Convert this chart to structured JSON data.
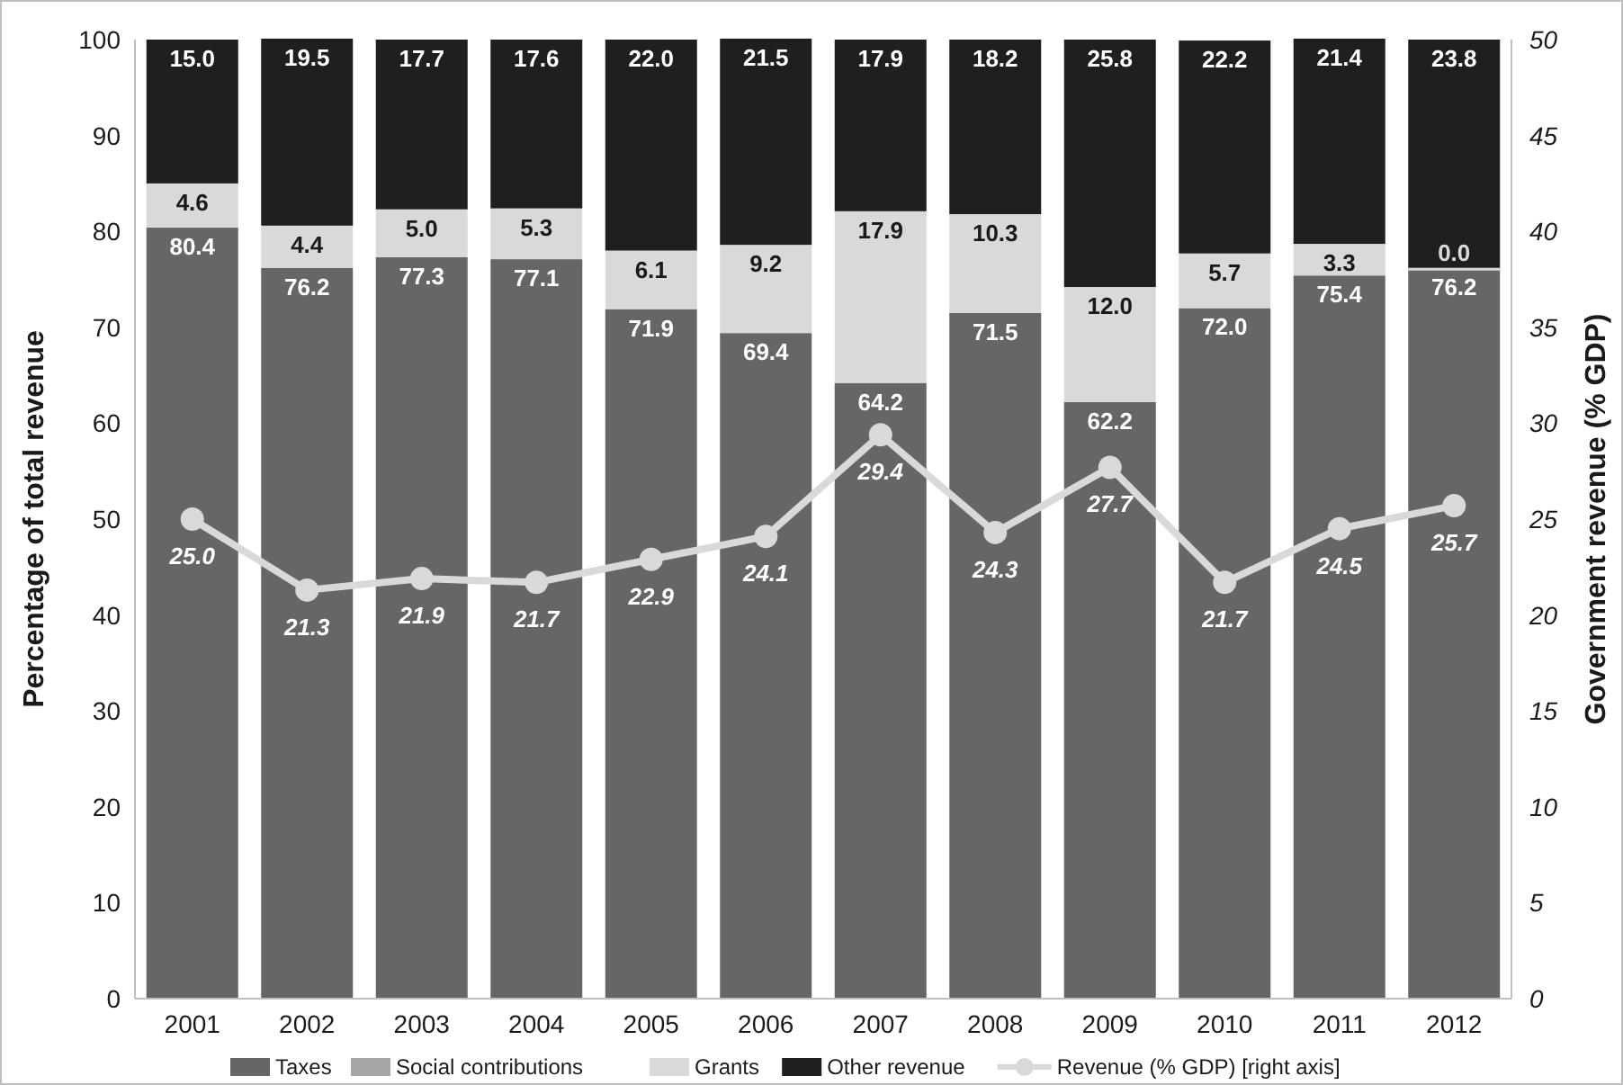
{
  "chart_data": {
    "type": "bar",
    "stacked": true,
    "ylabel": "Percentage of total revenue",
    "y2label": "Government revenue (% GDP)",
    "categories": [
      "2001",
      "2002",
      "2003",
      "2004",
      "2005",
      "2006",
      "2007",
      "2008",
      "2009",
      "2010",
      "2011",
      "2012"
    ],
    "series": [
      {
        "name": "Taxes",
        "color": "#666666",
        "values": [
          80.4,
          76.2,
          77.3,
          77.1,
          71.9,
          69.4,
          64.2,
          71.5,
          62.2,
          72.0,
          75.4,
          76.2
        ],
        "value_labels": [
          "80.4",
          "76.2",
          "77.3",
          "77.1",
          "71.9",
          "69.4",
          "64.2",
          "71.5",
          "62.2",
          "72.0",
          "75.4",
          "76.2"
        ]
      },
      {
        "name": "Social contributions",
        "color": "#a6a6a6",
        "values": [
          null,
          null,
          null,
          null,
          null,
          null,
          null,
          null,
          null,
          null,
          null,
          null
        ]
      },
      {
        "name": "Grants",
        "color": "#d9d9d9",
        "values": [
          4.6,
          4.4,
          5.0,
          5.3,
          6.1,
          9.2,
          17.9,
          10.3,
          12.0,
          5.7,
          3.3,
          0.0
        ],
        "value_labels": [
          "4.6",
          "4.4",
          "5.0",
          "5.3",
          "6.1",
          "9.2",
          "17.9",
          "10.3",
          "12.0",
          "5.7",
          "3.3",
          "0.0"
        ]
      },
      {
        "name": "Other revenue",
        "color": "#1f1f1f",
        "values": [
          15.0,
          19.5,
          17.7,
          17.6,
          22.0,
          21.5,
          17.9,
          18.2,
          25.8,
          22.2,
          21.4,
          23.8
        ],
        "value_labels": [
          "15.0",
          "19.5",
          "17.7",
          "17.6",
          "22.0",
          "21.5",
          "17.9",
          "18.2",
          "25.8",
          "22.2",
          "21.4",
          "23.8"
        ]
      },
      {
        "name": "Revenue (% GDP) [right axis]",
        "type": "line",
        "axis": "y2",
        "color": "#d9d9d9",
        "marker": "circle",
        "values": [
          25.0,
          21.3,
          21.9,
          21.7,
          22.9,
          24.1,
          29.4,
          24.3,
          27.7,
          21.7,
          24.5,
          25.7
        ],
        "value_labels": [
          "25.0",
          "21.3",
          "21.9",
          "21.7",
          "22.9",
          "24.1",
          "29.4",
          "24.3",
          "27.7",
          "21.7",
          "24.5",
          "25.7"
        ]
      }
    ],
    "ylim": [
      0,
      100
    ],
    "yticks": [
      0,
      10,
      20,
      30,
      40,
      50,
      60,
      70,
      80,
      90,
      100
    ],
    "y2lim": [
      0,
      50
    ],
    "y2ticks": [
      0,
      5,
      10,
      15,
      20,
      25,
      30,
      35,
      40,
      45,
      50
    ],
    "legend": "bottom",
    "grid": false
  }
}
